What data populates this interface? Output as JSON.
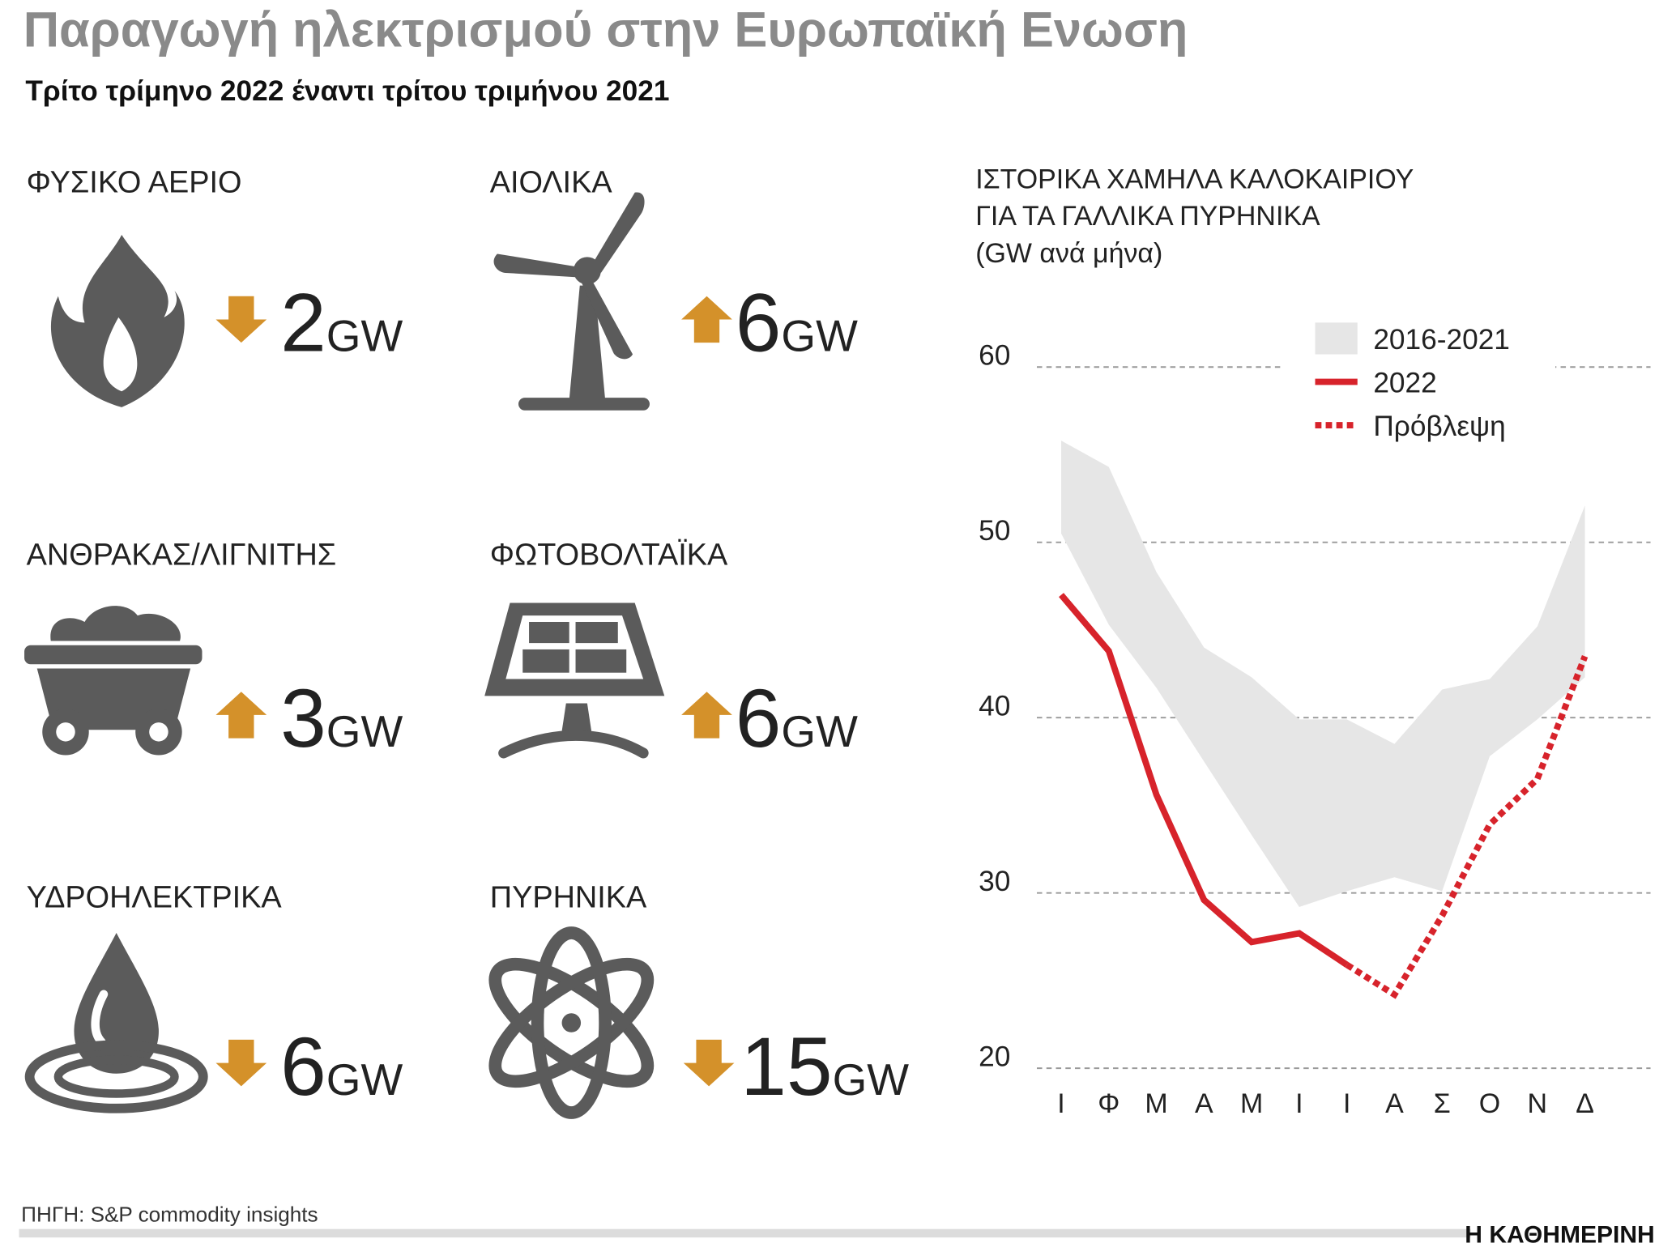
{
  "title": "Παραγωγή ηλεκτρισμού στην Ευρωπαϊκή Ενωση",
  "subtitle": "Τρίτο τρίμηνο 2022 έναντι τρίτου τριμήνου 2021",
  "items": [
    {
      "label": "ΦΥΣΙΚΟ ΑΕΡΙΟ",
      "direction": "down",
      "value": "2",
      "unit": "GW"
    },
    {
      "label": "ΑΙΟΛΙΚΑ",
      "direction": "up",
      "value": "6",
      "unit": "GW"
    },
    {
      "label": "ΑΝΘΡΑΚΑΣ/ΛΙΓΝΙΤΗΣ",
      "direction": "up",
      "value": "3",
      "unit": "GW"
    },
    {
      "label": "ΦΩΤΟΒΟΛΤΑΪΚΑ",
      "direction": "up",
      "value": "6",
      "unit": "GW"
    },
    {
      "label": "ΥΔΡΟΗΛΕΚΤΡΙΚΑ",
      "direction": "down",
      "value": "6",
      "unit": "GW"
    },
    {
      "label": "ΠΥΡΗΝΙΚΑ",
      "direction": "down",
      "value": "15",
      "unit": "GW"
    }
  ],
  "chart_data": {
    "type": "line",
    "title": [
      "ΙΣΤΟΡΙΚΑ ΧΑΜΗΛΑ ΚΑΛΟΚΑΙΡΙΟΥ",
      "ΓΙΑ ΤΑ ΓΑΛΛΙΚΑ ΠΥΡΗΝΙΚΑ",
      "(GW ανά μήνα)"
    ],
    "categories": [
      "Ι",
      "Φ",
      "Μ",
      "Α",
      "Μ",
      "Ι",
      "Ι",
      "Α",
      "Σ",
      "Ο",
      "Ν",
      "Δ"
    ],
    "ylim": [
      20,
      60
    ],
    "yticks": [
      20,
      30,
      40,
      50,
      60
    ],
    "grid": true,
    "band": {
      "name": "2016-2021",
      "color": "#e6e6e6",
      "low": [
        50.5,
        45.3,
        41.7,
        37.5,
        33.3,
        29.2,
        30.1,
        30.9,
        30.1,
        37.8,
        39.9,
        42.3
      ],
      "high": [
        55.8,
        54.3,
        48.3,
        44.0,
        42.3,
        39.9,
        39.9,
        38.5,
        41.6,
        42.2,
        45.2,
        52.1
      ]
    },
    "series": [
      {
        "name": "2022",
        "color": "#d7232b",
        "dashed": false,
        "values": [
          47.0,
          43.8,
          35.6,
          29.6,
          27.2,
          27.7,
          25.9,
          null,
          null,
          null,
          null,
          null
        ]
      },
      {
        "name": "Πρόβλεψη",
        "color": "#d7232b",
        "dashed": true,
        "values": [
          null,
          null,
          null,
          null,
          null,
          null,
          25.9,
          24.2,
          28.7,
          33.9,
          36.5,
          43.5
        ]
      }
    ]
  },
  "source": "ΠΗΓΗ: S&P commodity insights",
  "brand": "Η ΚΑΘΗΜΕΡΙΝΗ"
}
